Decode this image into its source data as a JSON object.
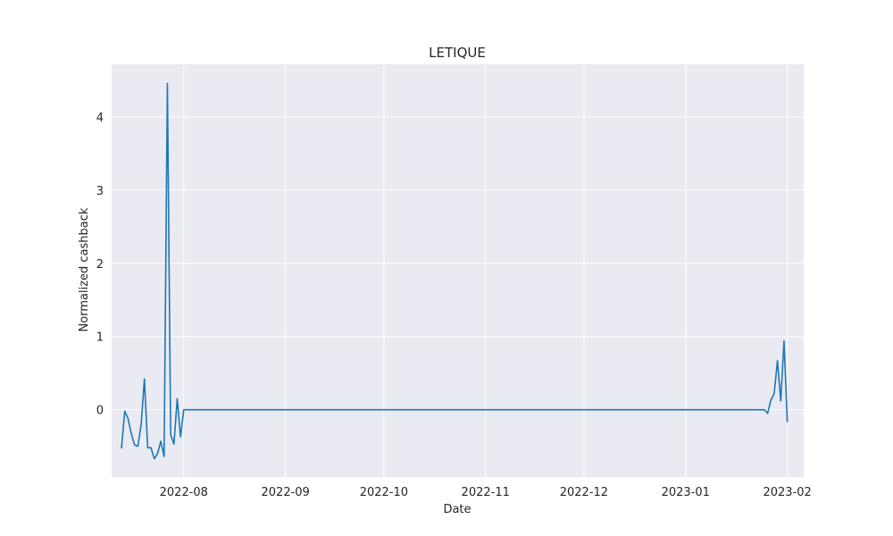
{
  "chart_data": {
    "type": "line",
    "title": "LETIQUE",
    "xlabel": "Date",
    "ylabel": "Normalized cashback",
    "grid": true,
    "xlim": [
      "2022-07-10",
      "2023-02-06"
    ],
    "ylim": [
      -0.92,
      4.72
    ],
    "x_ticks": [
      "2022-08-01",
      "2022-09-01",
      "2022-10-01",
      "2022-11-01",
      "2022-12-01",
      "2023-01-01",
      "2023-02-01"
    ],
    "x_tick_labels": [
      "2022-08",
      "2022-09",
      "2022-10",
      "2022-11",
      "2022-12",
      "2023-01",
      "2023-02"
    ],
    "y_ticks": [
      0,
      1,
      2,
      3,
      4
    ],
    "y_tick_labels": [
      "0",
      "1",
      "2",
      "3",
      "4"
    ],
    "line_color": "#1f77b4",
    "background_color": "#eaeaf2",
    "series": [
      {
        "x": [
          "2022-07-13",
          "2022-07-14",
          "2022-07-15",
          "2022-07-16",
          "2022-07-17",
          "2022-07-18",
          "2022-07-19",
          "2022-07-20",
          "2022-07-21",
          "2022-07-22",
          "2022-07-23",
          "2022-07-24",
          "2022-07-25",
          "2022-07-26",
          "2022-07-27",
          "2022-07-28",
          "2022-07-29",
          "2022-07-30",
          "2022-07-31",
          "2022-08-01",
          "2022-08-02",
          "2023-01-25",
          "2023-01-26",
          "2023-01-27",
          "2023-01-28",
          "2023-01-29",
          "2023-01-30",
          "2023-01-31",
          "2023-02-01"
        ],
        "values": [
          -0.53,
          -0.02,
          -0.12,
          -0.33,
          -0.48,
          -0.5,
          -0.2,
          0.42,
          -0.52,
          -0.52,
          -0.67,
          -0.6,
          -0.43,
          -0.64,
          4.46,
          -0.34,
          -0.47,
          0.15,
          -0.37,
          0.0,
          0.0,
          0.0,
          -0.05,
          0.13,
          0.22,
          0.67,
          0.12,
          0.94,
          -0.17
        ]
      }
    ]
  }
}
